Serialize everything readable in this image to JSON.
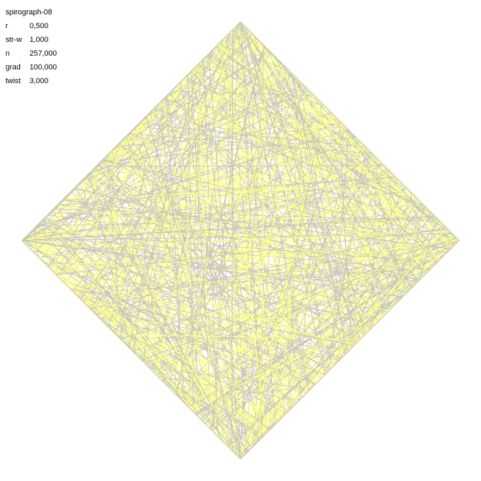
{
  "title": "spirograph-08",
  "params": [
    {
      "key": "r",
      "value": "0,500"
    },
    {
      "key": "str-w",
      "value": "1,000"
    },
    {
      "key": "n",
      "value": "257,000"
    },
    {
      "key": "grad",
      "value": "100,000"
    },
    {
      "key": "twist",
      "value": "3,000"
    }
  ],
  "colors": {
    "background": "#ffffff",
    "stroke_gray": "#c8c4be",
    "stroke_yellow": "#ffff8c"
  }
}
